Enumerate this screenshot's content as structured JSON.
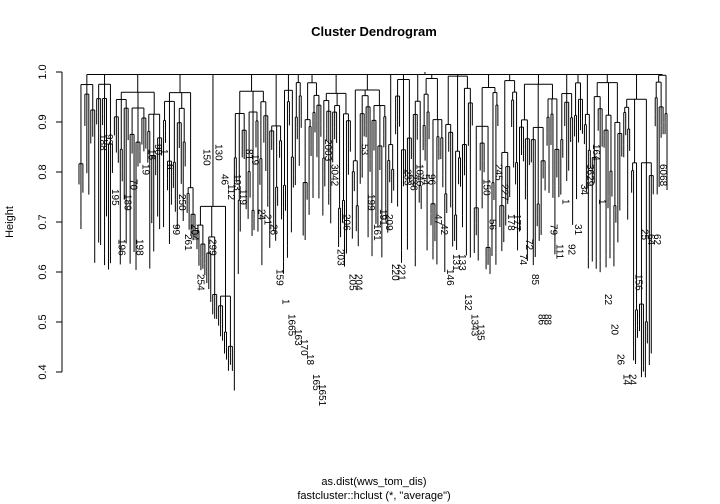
{
  "chart_data": {
    "type": "dendrogram",
    "title": "Cluster Dendrogram",
    "xlabel": "as.dist(wws_tom_dis)",
    "subtitle": "fastcluster::hclust (*, \"average\")",
    "ylabel": "Height",
    "ylim": [
      0.4,
      1.0
    ],
    "yticks": [
      "0.4",
      "0.5",
      "0.6",
      "0.7",
      "0.8",
      "0.9",
      "1.0"
    ],
    "yticks_values": [
      0.4,
      0.5,
      0.6,
      0.7,
      0.8,
      0.9,
      1.0
    ],
    "leaf_labels": [
      {
        "label": "188",
        "height": 0.88
      },
      {
        "label": "93",
        "height": 0.88
      },
      {
        "label": "195",
        "height": 0.77
      },
      {
        "label": "196",
        "height": 0.67
      },
      {
        "label": "189",
        "height": 0.76
      },
      {
        "label": "70",
        "height": 0.79
      },
      {
        "label": "198",
        "height": 0.67
      },
      {
        "label": "19",
        "height": 0.82
      },
      {
        "label": "16",
        "height": 0.85
      },
      {
        "label": "90",
        "height": 0.86
      },
      {
        "label": "1",
        "height": 0.85
      },
      {
        "label": "6",
        "height": 0.82
      },
      {
        "label": "99",
        "height": 0.7
      },
      {
        "label": "250",
        "height": 0.76
      },
      {
        "label": "261",
        "height": 0.68
      },
      {
        "label": "204",
        "height": 0.7
      },
      {
        "label": "254",
        "height": 0.6
      },
      {
        "label": "150",
        "height": 0.85
      },
      {
        "label": "299",
        "height": 0.67
      },
      {
        "label": "130",
        "height": 0.86
      },
      {
        "label": "46",
        "height": 0.8
      },
      {
        "label": "112",
        "height": 0.78
      },
      {
        "label": "193",
        "height": 0.8
      },
      {
        "label": "119",
        "height": 0.77
      },
      {
        "label": "81",
        "height": 0.85
      },
      {
        "label": "19",
        "height": 0.84
      },
      {
        "label": "24",
        "height": 0.73
      },
      {
        "label": "21",
        "height": 0.72
      },
      {
        "label": "26",
        "height": 0.7
      },
      {
        "label": "159",
        "height": 0.61
      },
      {
        "label": "1",
        "height": 0.55
      },
      {
        "label": "1665",
        "height": 0.52
      },
      {
        "label": "163",
        "height": 0.49
      },
      {
        "label": "170",
        "height": 0.47
      },
      {
        "label": "18",
        "height": 0.44
      },
      {
        "label": "165",
        "height": 0.4
      },
      {
        "label": "1651",
        "height": 0.38
      },
      {
        "label": "2003",
        "height": 0.87
      },
      {
        "label": "3042",
        "height": 0.82
      },
      {
        "label": "203",
        "height": 0.65
      },
      {
        "label": "206",
        "height": 0.72
      },
      {
        "label": "205",
        "height": 0.6
      },
      {
        "label": "204",
        "height": 0.6
      },
      {
        "label": "53",
        "height": 0.86
      },
      {
        "label": "199",
        "height": 0.76
      },
      {
        "label": "161",
        "height": 0.7
      },
      {
        "label": "191",
        "height": 0.73
      },
      {
        "label": "209",
        "height": 0.72
      },
      {
        "label": "220",
        "height": 0.62
      },
      {
        "label": "221",
        "height": 0.62
      },
      {
        "label": "233",
        "height": 0.81
      },
      {
        "label": "236",
        "height": 0.8
      },
      {
        "label": "1046",
        "height": 0.82
      },
      {
        "label": "54",
        "height": 0.8
      },
      {
        "label": "96",
        "height": 0.8
      },
      {
        "label": "47",
        "height": 0.72
      },
      {
        "label": "42",
        "height": 0.7
      },
      {
        "label": "146",
        "height": 0.61
      },
      {
        "label": "131",
        "height": 0.64
      },
      {
        "label": "133",
        "height": 0.64
      },
      {
        "label": "132",
        "height": 0.56
      },
      {
        "label": "1343",
        "height": 0.52
      },
      {
        "label": "135",
        "height": 0.5
      },
      {
        "label": "150",
        "height": 0.79
      },
      {
        "label": "56",
        "height": 0.71
      },
      {
        "label": "245",
        "height": 0.82
      },
      {
        "label": "227",
        "height": 0.78
      },
      {
        "label": "178",
        "height": 0.72
      },
      {
        "label": "177",
        "height": 0.72
      },
      {
        "label": "74",
        "height": 0.64
      },
      {
        "label": "72",
        "height": 0.67
      },
      {
        "label": "85",
        "height": 0.6
      },
      {
        "label": "86",
        "height": 0.52
      },
      {
        "label": "88",
        "height": 0.52
      },
      {
        "label": "79",
        "height": 0.7
      },
      {
        "label": "111",
        "height": 0.66
      },
      {
        "label": "1",
        "height": 0.75
      },
      {
        "label": "92",
        "height": 0.66
      },
      {
        "label": "31",
        "height": 0.7
      },
      {
        "label": "34",
        "height": 0.78
      },
      {
        "label": "3629",
        "height": 0.82
      },
      {
        "label": "164",
        "height": 0.86
      },
      {
        "label": "1",
        "height": 0.75
      },
      {
        "label": "22",
        "height": 0.56
      },
      {
        "label": "20",
        "height": 0.5
      },
      {
        "label": "26",
        "height": 0.44
      },
      {
        "label": "14",
        "height": 0.4
      },
      {
        "label": "24",
        "height": 0.4
      },
      {
        "label": "156",
        "height": 0.6
      },
      {
        "label": "25",
        "height": 0.69
      },
      {
        "label": "64",
        "height": 0.68
      },
      {
        "label": "62",
        "height": 0.68
      },
      {
        "label": "6068",
        "height": 0.82
      }
    ]
  }
}
